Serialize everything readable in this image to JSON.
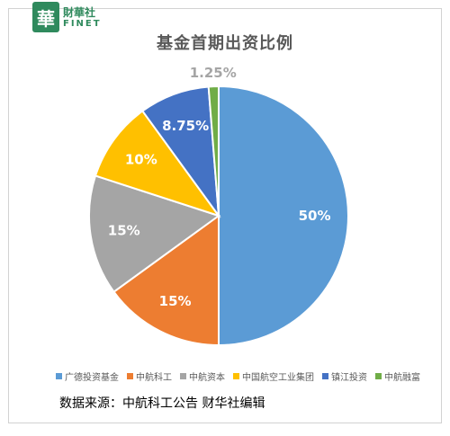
{
  "logo": {
    "mark": "華",
    "name_cn": "財華社",
    "name_en": "FINET"
  },
  "chart_data": {
    "type": "pie",
    "title": "基金首期出资比例",
    "labels": [
      "广德投资基金",
      "中航科工",
      "中航资本",
      "中国航空工业集团",
      "镇江投资",
      "中航融富"
    ],
    "values": [
      50,
      15,
      15,
      10,
      8.75,
      1.25
    ],
    "value_labels": [
      "50%",
      "15%",
      "15%",
      "10%",
      "8.75%",
      "1.25%"
    ],
    "colors": [
      "#5b9bd5",
      "#ed7d31",
      "#a5a5a5",
      "#ffc000",
      "#4472c4",
      "#70ad47"
    ],
    "label_colors": [
      "#ffffff",
      "#ffffff",
      "#ffffff",
      "#ffffff",
      "#ffffff",
      "#a5a5a5"
    ],
    "start_angle_deg": 0,
    "direction": "clockwise",
    "legend_position": "bottom"
  },
  "source_note": "数据来源：中航科工公告    财华社编辑"
}
